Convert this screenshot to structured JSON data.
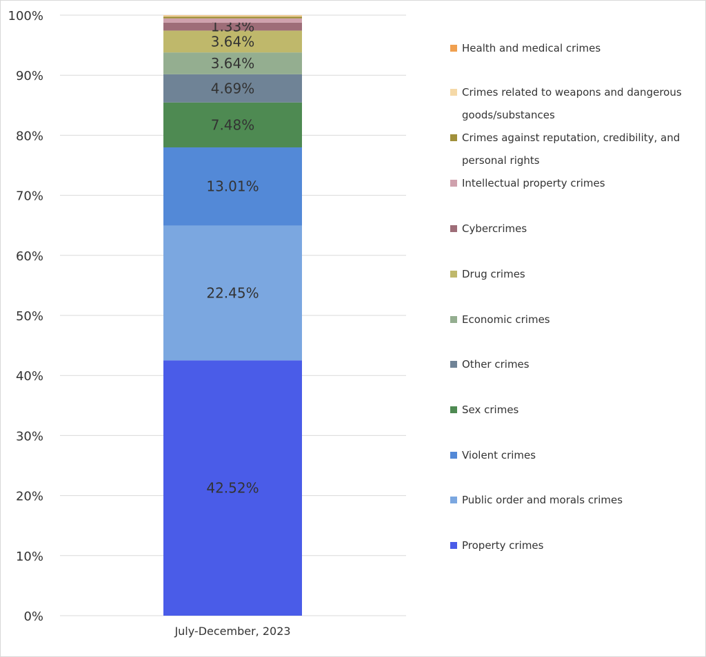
{
  "chart_data": {
    "type": "bar",
    "stacked": true,
    "categories": [
      "July-December, 2023"
    ],
    "ylim": [
      0,
      100
    ],
    "yticks": [
      "0%",
      "10%",
      "20%",
      "30%",
      "40%",
      "50%",
      "60%",
      "70%",
      "80%",
      "90%",
      "100%"
    ],
    "grid": true,
    "legend_position": "right",
    "series": [
      {
        "name": "Property crimes",
        "values": [
          42.52
        ],
        "label": "42.52%",
        "color": "#4a5ce8"
      },
      {
        "name": "Public order and morals crimes",
        "values": [
          22.45
        ],
        "label": "22.45%",
        "color": "#7ba7e0"
      },
      {
        "name": "Violent crimes",
        "values": [
          13.01
        ],
        "label": "13.01%",
        "color": "#5389d7"
      },
      {
        "name": "Sex crimes",
        "values": [
          7.48
        ],
        "label": "7.48%",
        "color": "#4e8a52"
      },
      {
        "name": "Other crimes",
        "values": [
          4.69
        ],
        "label": "4.69%",
        "color": "#6f8396"
      },
      {
        "name": "Economic crimes",
        "values": [
          3.64
        ],
        "label": "3.64%",
        "color": "#94ae90"
      },
      {
        "name": "Drug crimes",
        "values": [
          3.64
        ],
        "label": "3.64%",
        "color": "#bfb86b"
      },
      {
        "name": "Cybercrimes",
        "values": [
          1.33
        ],
        "label": "1.33%",
        "color": "#9e6d78"
      },
      {
        "name": "Intellectual property crimes",
        "values": [
          0.7
        ],
        "label": "",
        "color": "#cfa1ad"
      },
      {
        "name": "Crimes against reputation, credibility, and personal rights",
        "values": [
          0.3
        ],
        "label": "",
        "color": "#a1903b"
      },
      {
        "name": "Crimes related to weapons and dangerous goods/substances",
        "values": [
          0.2
        ],
        "label": "",
        "color": "#f5d9a8"
      },
      {
        "name": "Health and medical crimes",
        "values": [
          0.04
        ],
        "label": "",
        "color": "#f0a050"
      }
    ]
  }
}
